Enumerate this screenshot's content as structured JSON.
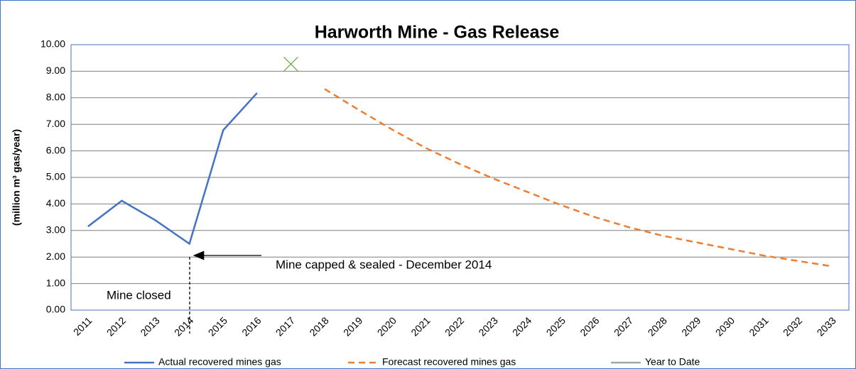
{
  "chart_data": {
    "type": "line",
    "title": "Harworth Mine - Gas Release",
    "y_label": "(million m³ gas/year)",
    "categories": [
      "2011",
      "2012",
      "2013",
      "2014",
      "2015",
      "2016",
      "2017",
      "2018",
      "2019",
      "2020",
      "2021",
      "2022",
      "2023",
      "2024",
      "2025",
      "2026",
      "2027",
      "2028",
      "2029",
      "2030",
      "2031",
      "2032",
      "2033"
    ],
    "series": [
      {
        "name": "Actual recovered mines gas",
        "color": "#4472c4",
        "dash": false,
        "values": [
          3.15,
          4.12,
          3.38,
          2.5,
          6.78,
          8.18,
          null,
          null,
          null,
          null,
          null,
          null,
          null,
          null,
          null,
          null,
          null,
          null,
          null,
          null,
          null,
          null,
          null
        ]
      },
      {
        "name": "Forecast recovered mines gas",
        "color": "#ed7d31",
        "dash": true,
        "values": [
          null,
          null,
          null,
          null,
          null,
          null,
          null,
          8.33,
          7.55,
          6.8,
          6.1,
          5.5,
          4.95,
          4.45,
          3.95,
          3.5,
          3.12,
          2.8,
          2.55,
          2.3,
          2.05,
          1.85,
          1.65
        ]
      },
      {
        "name": "Year to Date",
        "color": "#a5a5a5",
        "marker": "x",
        "marker_color": "#70ad47",
        "dash": false,
        "values": [
          null,
          null,
          null,
          null,
          null,
          null,
          9.27,
          null,
          null,
          null,
          null,
          null,
          null,
          null,
          null,
          null,
          null,
          null,
          null,
          null,
          null,
          null,
          null
        ]
      }
    ],
    "ylim": [
      0,
      10
    ],
    "yticks": [
      {
        "value": 0,
        "label": "0.00"
      },
      {
        "value": 1,
        "label": "1.00"
      },
      {
        "value": 2,
        "label": "2.00"
      },
      {
        "value": 3,
        "label": "3.00"
      },
      {
        "value": 4,
        "label": "4.00"
      },
      {
        "value": 5,
        "label": "5.00"
      },
      {
        "value": 6,
        "label": "6.00"
      },
      {
        "value": 7,
        "label": "7.00"
      },
      {
        "value": 8,
        "label": "8.00"
      },
      {
        "value": 9,
        "label": "9.00"
      },
      {
        "value": 10,
        "label": "10.00"
      }
    ],
    "grid": true,
    "legend": "bottom",
    "annotations": [
      {
        "text": "Mine capped & sealed  - December 2014"
      },
      {
        "text": "Mine closed"
      }
    ]
  }
}
